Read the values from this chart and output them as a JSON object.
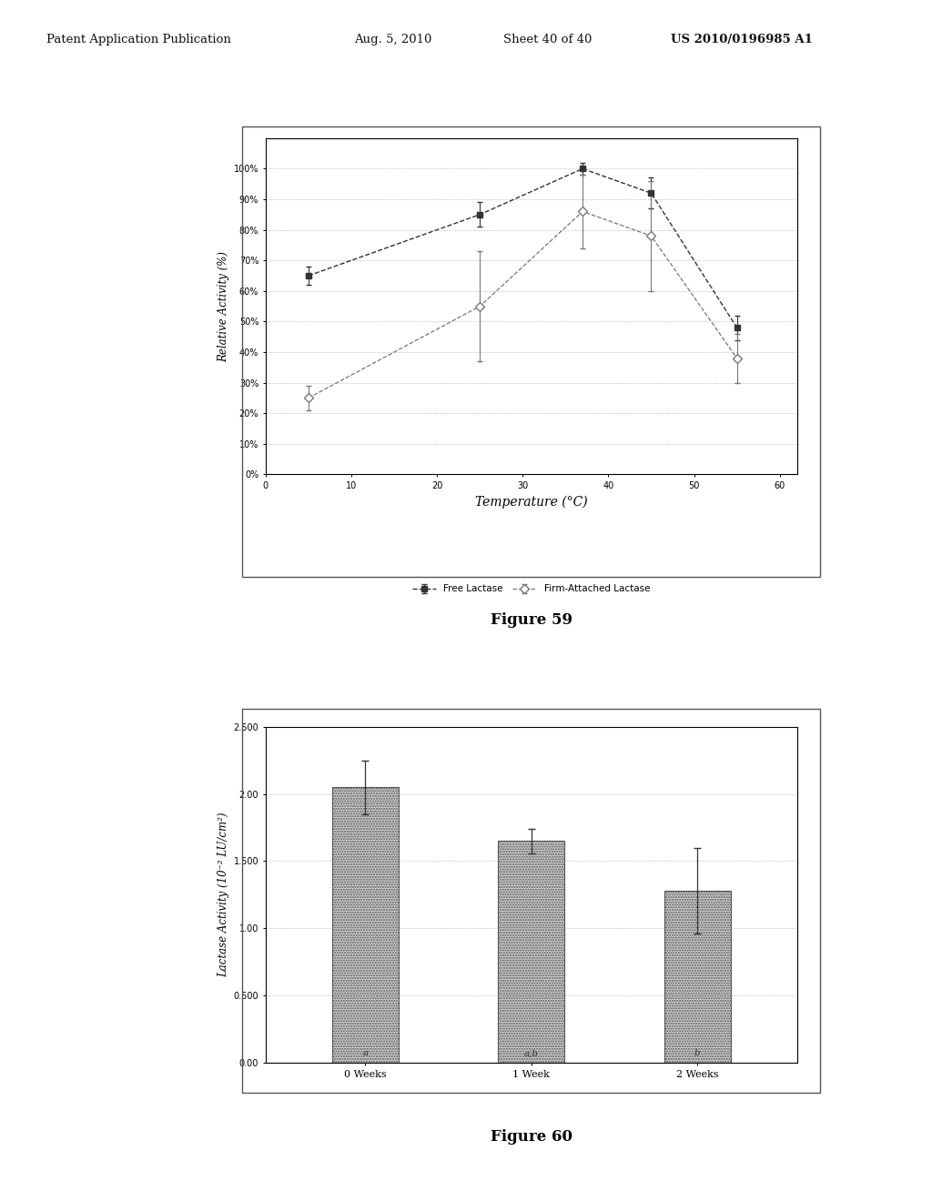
{
  "fig59": {
    "xlabel": "Temperature (°C)",
    "ylabel": "Relative Activity (%)",
    "free_lactase": {
      "x": [
        5,
        25,
        37,
        45,
        55
      ],
      "y": [
        65,
        85,
        100,
        92,
        48
      ],
      "yerr": [
        3,
        4,
        2,
        5,
        4
      ],
      "label": "Free Lactase",
      "color": "#333333",
      "linestyle": "--",
      "marker": "s",
      "markersize": 5
    },
    "attached_lactase": {
      "x": [
        5,
        25,
        37,
        45,
        55
      ],
      "y": [
        25,
        55,
        86,
        78,
        38
      ],
      "yerr": [
        4,
        18,
        12,
        18,
        8
      ],
      "label": "Firm-Attached Lactase",
      "color": "#777777",
      "linestyle": "--",
      "marker": "D",
      "markersize": 5
    },
    "xlim": [
      0,
      62
    ],
    "ylim": [
      0,
      110
    ],
    "xticks": [
      0,
      10,
      20,
      30,
      40,
      50,
      60
    ],
    "yticks": [
      0,
      10,
      20,
      30,
      40,
      50,
      60,
      70,
      80,
      90,
      100
    ],
    "ytick_labels": [
      "0%",
      "10%",
      "20%",
      "30%",
      "40%",
      "50%",
      "60%",
      "70%",
      "80%",
      "90%",
      "100%"
    ],
    "caption": "Figure 59"
  },
  "fig60": {
    "ylabel": "Lactase Activity (10⁻² LU/cm²)",
    "categories": [
      "0 Weeks",
      "1 Week",
      "2 Weeks"
    ],
    "values": [
      2.05,
      1.65,
      1.28
    ],
    "yerr": [
      0.2,
      0.09,
      0.32
    ],
    "bar_labels": [
      "a",
      "a,b",
      "b"
    ],
    "bar_color": "#cccccc",
    "ylim": [
      0.0,
      2.5
    ],
    "yticks": [
      0.0,
      0.5,
      1.0,
      1.5,
      2.0,
      2.5
    ],
    "ytick_labels": [
      "0.00",
      "0.500",
      "1.00",
      "1.500",
      "2.00",
      "2.500"
    ],
    "caption": "Figure 60"
  },
  "header_text1": "Patent Application Publication",
  "header_text2": "Aug. 5, 2010",
  "header_text3": "Sheet 40 of 40",
  "header_text4": "US 2010/0196985 A1",
  "bg_color": "#ffffff",
  "plot_bg_color": "#ffffff",
  "border_color": "#555555"
}
